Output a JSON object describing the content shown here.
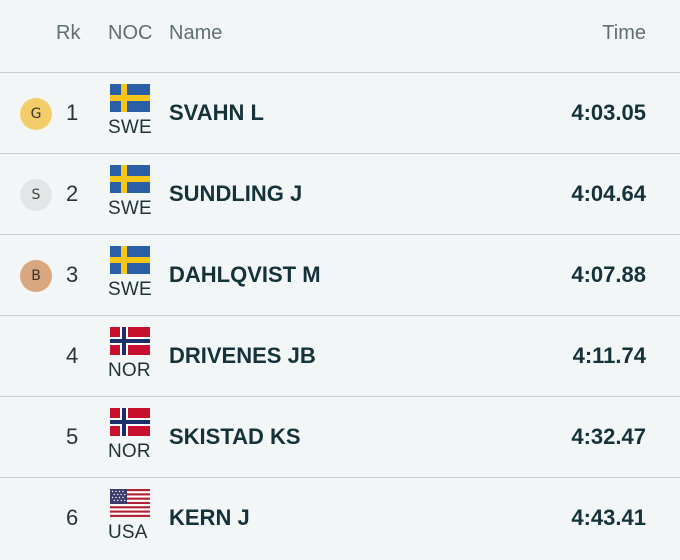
{
  "header": {
    "rank": "Rk",
    "noc": "NOC",
    "name": "Name",
    "time": "Time"
  },
  "colors": {
    "gold": "#f3cd6a",
    "silver": "#e3e6e7",
    "bronze": "#d8a77e",
    "swe_blue": "#2a5fa8",
    "swe_yellow": "#f5c518",
    "nor_red": "#c8102e",
    "nor_blue": "#1c2f6b"
  },
  "rows": [
    {
      "medal": "G",
      "medal_type": "gold",
      "rank": "1",
      "flag": "sweden-flag-icon",
      "noc": "SWE",
      "name": "SVAHN L",
      "time": "4:03.05"
    },
    {
      "medal": "S",
      "medal_type": "silver",
      "rank": "2",
      "flag": "sweden-flag-icon",
      "noc": "SWE",
      "name": "SUNDLING J",
      "time": "4:04.64"
    },
    {
      "medal": "B",
      "medal_type": "bronze",
      "rank": "3",
      "flag": "sweden-flag-icon",
      "noc": "SWE",
      "name": "DAHLQVIST M",
      "time": "4:07.88"
    },
    {
      "medal": "",
      "medal_type": "",
      "rank": "4",
      "flag": "norway-flag-icon",
      "noc": "NOR",
      "name": "DRIVENES JB",
      "time": "4:11.74"
    },
    {
      "medal": "",
      "medal_type": "",
      "rank": "5",
      "flag": "norway-flag-icon",
      "noc": "NOR",
      "name": "SKISTAD KS",
      "time": "4:32.47"
    },
    {
      "medal": "",
      "medal_type": "",
      "rank": "6",
      "flag": "usa-flag-icon",
      "noc": "USA",
      "name": "KERN J",
      "time": "4:43.41"
    }
  ]
}
